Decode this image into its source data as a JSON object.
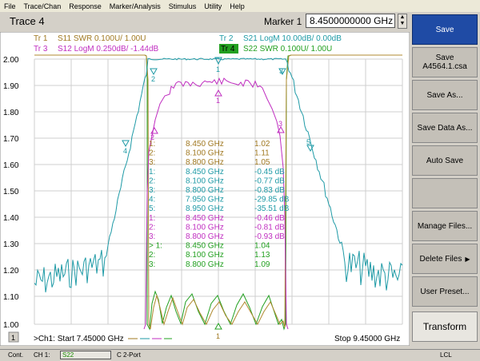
{
  "menu": [
    "File",
    "Trace/Chan",
    "Response",
    "Marker/Analysis",
    "Stimulus",
    "Utility",
    "Help"
  ],
  "trace_title": "Trace 4",
  "marker": {
    "label": "Marker 1",
    "value": "8.4500000000 GHz"
  },
  "traces": [
    {
      "id": "Tr  1",
      "text": "S11 SWR 0.100U/  1.00U",
      "color": "#a07820"
    },
    {
      "id": "Tr  2",
      "text": "S21 LogM 10.00dB/  0.00dB",
      "color": "#1e9aa6"
    },
    {
      "id": "Tr  3",
      "text": "S12 LogM 0.250dB/  -1.44dB",
      "color": "#c02ec0"
    },
    {
      "id": "Tr  4",
      "text": "S22 SWR 0.100U/  1.00U",
      "color": "#22a020"
    }
  ],
  "y_ticks": [
    "2.00",
    "1.90",
    "1.80",
    "1.70",
    "1.60",
    "1.50",
    "1.40",
    "1.30",
    "1.20",
    "1.10",
    "1.00"
  ],
  "markers_table": [
    {
      "n": "1:",
      "f": "8.450 GHz",
      "v": "1.02",
      "color": "#a07820"
    },
    {
      "n": "2:",
      "f": "8.100 GHz",
      "v": "1.11",
      "color": "#a07820"
    },
    {
      "n": "3:",
      "f": "8.800 GHz",
      "v": "1.05",
      "color": "#a07820"
    },
    {
      "n": "1:",
      "f": "8.450 GHz",
      "v": "-0.45 dB",
      "color": "#1e9aa6"
    },
    {
      "n": "2:",
      "f": "8.100 GHz",
      "v": "-0.77 dB",
      "color": "#1e9aa6"
    },
    {
      "n": "3:",
      "f": "8.800 GHz",
      "v": "-0.83 dB",
      "color": "#1e9aa6"
    },
    {
      "n": "4:",
      "f": "7.950 GHz",
      "v": "-29.85 dB",
      "color": "#1e9aa6"
    },
    {
      "n": "5:",
      "f": "8.950 GHz",
      "v": "-35.51 dB",
      "color": "#1e9aa6"
    },
    {
      "n": "1:",
      "f": "8.450 GHz",
      "v": "-0.46 dB",
      "color": "#c02ec0"
    },
    {
      "n": "2:",
      "f": "8.100 GHz",
      "v": "-0.81 dB",
      "color": "#c02ec0"
    },
    {
      "n": "3:",
      "f": "8.800 GHz",
      "v": "-0.93 dB",
      "color": "#c02ec0"
    },
    {
      "n": "> 1:",
      "f": "8.450 GHz",
      "v": "1.04",
      "color": "#22a020"
    },
    {
      "n": "2:",
      "f": "8.100 GHz",
      "v": "1.13",
      "color": "#22a020"
    },
    {
      "n": "3:",
      "f": "8.800 GHz",
      "v": "1.09",
      "color": "#22a020"
    }
  ],
  "footer": {
    "channel": "1",
    "start": ">Ch1: Start  7.45000 GHz",
    "stop": "Stop  9.45000 GHz"
  },
  "softkeys": [
    {
      "label": "Save",
      "style": "active"
    },
    {
      "label": "Save",
      "label2": "A4564.1.csa",
      "style": ""
    },
    {
      "label": "Save As...",
      "style": ""
    },
    {
      "label": "Save Data As...",
      "style": ""
    },
    {
      "label": "Auto Save",
      "style": ""
    },
    {
      "label": "",
      "style": ""
    },
    {
      "label": "Manage Files...",
      "style": ""
    },
    {
      "label": "Delete Files",
      "style": "",
      "arrow": "▶"
    },
    {
      "label": "User Preset...",
      "style": ""
    },
    {
      "label": "Transform",
      "style": "lit"
    }
  ],
  "status": {
    "cont": "Cont.",
    "ch": "CH 1:",
    "param": "S22",
    "port": "C  2-Port",
    "lcl": "LCL"
  }
}
